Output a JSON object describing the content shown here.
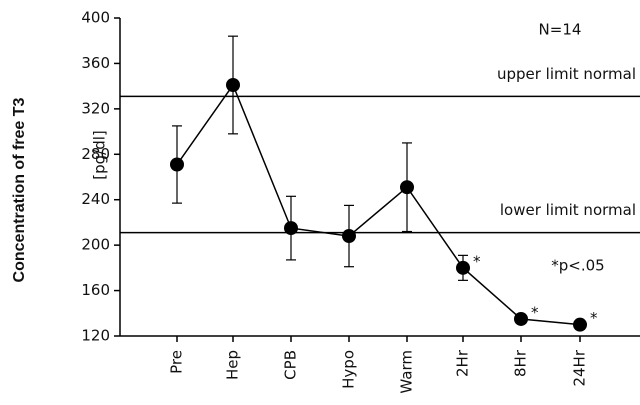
{
  "chart_data": {
    "type": "line",
    "y_label": "Concentration of free T3",
    "y_unit": "[pg/dl]",
    "categories": [
      "Pre",
      "Hep",
      "CPB",
      "Hypo",
      "Warm",
      "2Hr",
      "8Hr",
      "24Hr"
    ],
    "series": [
      {
        "color": "#000000",
        "values": [
          271,
          341,
          215,
          208,
          251,
          180,
          135,
          130
        ],
        "errors": [
          34,
          43,
          28,
          27,
          39,
          11,
          null,
          null
        ],
        "markers": [
          null,
          null,
          null,
          null,
          null,
          "*",
          "*",
          "*"
        ]
      }
    ],
    "reference_lines": [
      {
        "value": 331,
        "label": "upper limit normal"
      },
      {
        "value": 211,
        "label": "lower limit normal"
      }
    ],
    "annotations": [
      "N=14",
      "*p<.05"
    ],
    "ylim": [
      120,
      400
    ],
    "yticks": [
      120,
      160,
      200,
      240,
      280,
      320,
      360,
      400
    ]
  }
}
